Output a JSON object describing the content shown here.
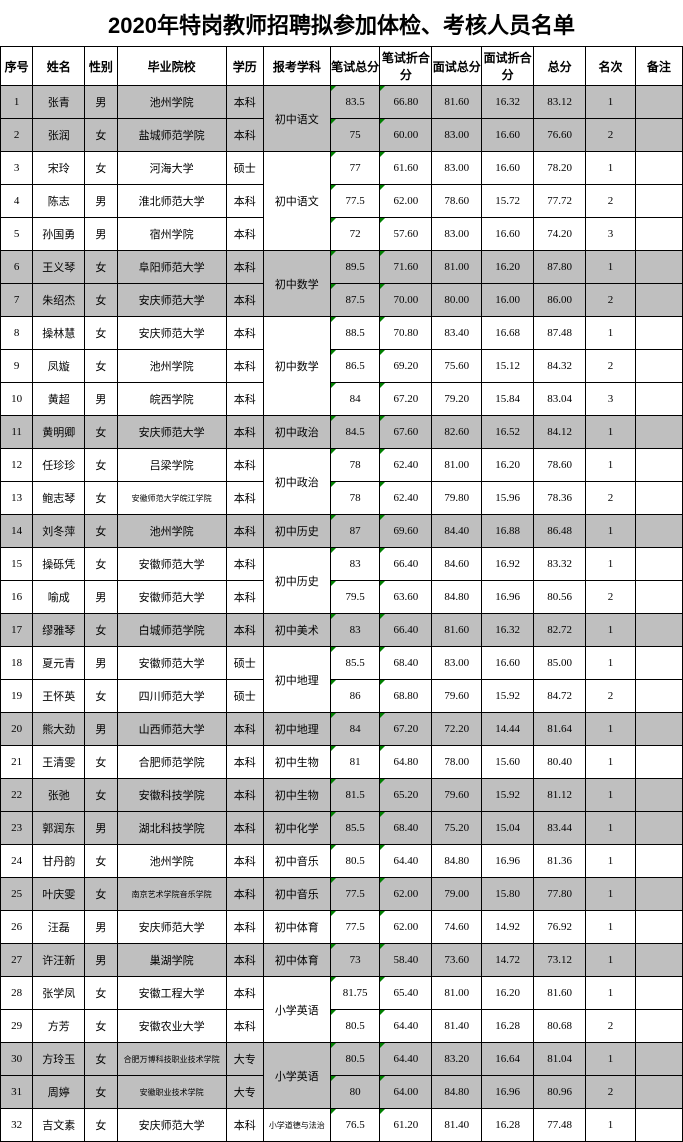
{
  "title": "2020年特岗教师招聘拟参加体检、考核人员名单",
  "headers": {
    "seq": "序号",
    "name": "姓名",
    "sex": "性别",
    "school": "毕业院校",
    "edu": "学历",
    "subject": "报考学科",
    "s1": "笔试总分",
    "s2": "笔试折合分",
    "s3": "面试总分",
    "s4": "面试折合分",
    "total": "总分",
    "rank": "名次",
    "note": "备注"
  },
  "groups": [
    {
      "subject": "初中语文",
      "shaded": true,
      "rows": [
        {
          "seq": 1,
          "name": "张青",
          "sex": "男",
          "school": "池州学院",
          "edu": "本科",
          "s1": "83.5",
          "s2": "66.80",
          "s3": "81.60",
          "s4": "16.32",
          "total": "83.12",
          "rank": 1
        },
        {
          "seq": 2,
          "name": "张润",
          "sex": "女",
          "school": "盐城师范学院",
          "edu": "本科",
          "s1": "75",
          "s2": "60.00",
          "s3": "83.00",
          "s4": "16.60",
          "total": "76.60",
          "rank": 2
        }
      ]
    },
    {
      "subject": "初中语文",
      "shaded": false,
      "rows": [
        {
          "seq": 3,
          "name": "宋玲",
          "sex": "女",
          "school": "河海大学",
          "edu": "硕士",
          "s1": "77",
          "s2": "61.60",
          "s3": "83.00",
          "s4": "16.60",
          "total": "78.20",
          "rank": 1
        },
        {
          "seq": 4,
          "name": "陈志",
          "sex": "男",
          "school": "淮北师范大学",
          "edu": "本科",
          "s1": "77.5",
          "s2": "62.00",
          "s3": "78.60",
          "s4": "15.72",
          "total": "77.72",
          "rank": 2
        },
        {
          "seq": 5,
          "name": "孙国勇",
          "sex": "男",
          "school": "宿州学院",
          "edu": "本科",
          "s1": "72",
          "s2": "57.60",
          "s3": "83.00",
          "s4": "16.60",
          "total": "74.20",
          "rank": 3
        }
      ]
    },
    {
      "subject": "初中数学",
      "shaded": true,
      "rows": [
        {
          "seq": 6,
          "name": "王义琴",
          "sex": "女",
          "school": "阜阳师范大学",
          "edu": "本科",
          "s1": "89.5",
          "s2": "71.60",
          "s3": "81.00",
          "s4": "16.20",
          "total": "87.80",
          "rank": 1
        },
        {
          "seq": 7,
          "name": "朱绍杰",
          "sex": "女",
          "school": "安庆师范大学",
          "edu": "本科",
          "s1": "87.5",
          "s2": "70.00",
          "s3": "80.00",
          "s4": "16.00",
          "total": "86.00",
          "rank": 2
        }
      ]
    },
    {
      "subject": "初中数学",
      "shaded": false,
      "rows": [
        {
          "seq": 8,
          "name": "操林慧",
          "sex": "女",
          "school": "安庆师范大学",
          "edu": "本科",
          "s1": "88.5",
          "s2": "70.80",
          "s3": "83.40",
          "s4": "16.68",
          "total": "87.48",
          "rank": 1
        },
        {
          "seq": 9,
          "name": "凤嫙",
          "sex": "女",
          "school": "池州学院",
          "edu": "本科",
          "s1": "86.5",
          "s2": "69.20",
          "s3": "75.60",
          "s4": "15.12",
          "total": "84.32",
          "rank": 2
        },
        {
          "seq": 10,
          "name": "黄超",
          "sex": "男",
          "school": "皖西学院",
          "edu": "本科",
          "s1": "84",
          "s2": "67.20",
          "s3": "79.20",
          "s4": "15.84",
          "total": "83.04",
          "rank": 3
        }
      ]
    },
    {
      "subject": "初中政治",
      "shaded": true,
      "rows": [
        {
          "seq": 11,
          "name": "黄明卿",
          "sex": "女",
          "school": "安庆师范大学",
          "edu": "本科",
          "s1": "84.5",
          "s2": "67.60",
          "s3": "82.60",
          "s4": "16.52",
          "total": "84.12",
          "rank": 1
        }
      ]
    },
    {
      "subject": "初中政治",
      "shaded": false,
      "rows": [
        {
          "seq": 12,
          "name": "任珍珍",
          "sex": "女",
          "school": "吕梁学院",
          "edu": "本科",
          "s1": "78",
          "s2": "62.40",
          "s3": "81.00",
          "s4": "16.20",
          "total": "78.60",
          "rank": 1
        },
        {
          "seq": 13,
          "name": "鲍志琴",
          "sex": "女",
          "school": "安徽师范大学皖江学院",
          "schoolSmall": true,
          "edu": "本科",
          "s1": "78",
          "s2": "62.40",
          "s3": "79.80",
          "s4": "15.96",
          "total": "78.36",
          "rank": 2
        }
      ]
    },
    {
      "subject": "初中历史",
      "shaded": true,
      "rows": [
        {
          "seq": 14,
          "name": "刘冬萍",
          "sex": "女",
          "school": "池州学院",
          "edu": "本科",
          "s1": "87",
          "s2": "69.60",
          "s3": "84.40",
          "s4": "16.88",
          "total": "86.48",
          "rank": 1
        }
      ]
    },
    {
      "subject": "初中历史",
      "shaded": false,
      "rows": [
        {
          "seq": 15,
          "name": "操砾凭",
          "sex": "女",
          "school": "安徽师范大学",
          "edu": "本科",
          "s1": "83",
          "s2": "66.40",
          "s3": "84.60",
          "s4": "16.92",
          "total": "83.32",
          "rank": 1
        },
        {
          "seq": 16,
          "name": "喻成",
          "sex": "男",
          "school": "安徽师范大学",
          "edu": "本科",
          "s1": "79.5",
          "s2": "63.60",
          "s3": "84.80",
          "s4": "16.96",
          "total": "80.56",
          "rank": 2
        }
      ]
    },
    {
      "subject": "初中美术",
      "shaded": true,
      "rows": [
        {
          "seq": 17,
          "name": "缪雅琴",
          "sex": "女",
          "school": "白城师范学院",
          "edu": "本科",
          "s1": "83",
          "s2": "66.40",
          "s3": "81.60",
          "s4": "16.32",
          "total": "82.72",
          "rank": 1
        }
      ]
    },
    {
      "subject": "初中地理",
      "shaded": false,
      "rows": [
        {
          "seq": 18,
          "name": "夏元青",
          "sex": "男",
          "school": "安徽师范大学",
          "edu": "硕士",
          "s1": "85.5",
          "s2": "68.40",
          "s3": "83.00",
          "s4": "16.60",
          "total": "85.00",
          "rank": 1
        },
        {
          "seq": 19,
          "name": "王怀英",
          "sex": "女",
          "school": "四川师范大学",
          "edu": "硕士",
          "s1": "86",
          "s2": "68.80",
          "s3": "79.60",
          "s4": "15.92",
          "total": "84.72",
          "rank": 2
        }
      ]
    },
    {
      "subject": "初中地理",
      "shaded": true,
      "rows": [
        {
          "seq": 20,
          "name": "熊大劲",
          "sex": "男",
          "school": "山西师范大学",
          "edu": "本科",
          "s1": "84",
          "s2": "67.20",
          "s3": "72.20",
          "s4": "14.44",
          "total": "81.64",
          "rank": 1
        }
      ]
    },
    {
      "subject": "初中生物",
      "shaded": false,
      "rows": [
        {
          "seq": 21,
          "name": "王清雯",
          "sex": "女",
          "school": "合肥师范学院",
          "edu": "本科",
          "s1": "81",
          "s2": "64.80",
          "s3": "78.00",
          "s4": "15.60",
          "total": "80.40",
          "rank": 1
        }
      ]
    },
    {
      "subject": "初中生物",
      "shaded": true,
      "rows": [
        {
          "seq": 22,
          "name": "张弛",
          "sex": "女",
          "school": "安徽科技学院",
          "edu": "本科",
          "s1": "81.5",
          "s2": "65.20",
          "s3": "79.60",
          "s4": "15.92",
          "total": "81.12",
          "rank": 1
        }
      ]
    },
    {
      "subject": "初中化学",
      "shaded": true,
      "rows": [
        {
          "seq": 23,
          "name": "郭润东",
          "sex": "男",
          "school": "湖北科技学院",
          "edu": "本科",
          "s1": "85.5",
          "s2": "68.40",
          "s3": "75.20",
          "s4": "15.04",
          "total": "83.44",
          "rank": 1
        }
      ]
    },
    {
      "subject": "初中音乐",
      "shaded": false,
      "rows": [
        {
          "seq": 24,
          "name": "甘丹韵",
          "sex": "女",
          "school": "池州学院",
          "edu": "本科",
          "s1": "80.5",
          "s2": "64.40",
          "s3": "84.80",
          "s4": "16.96",
          "total": "81.36",
          "rank": 1
        }
      ]
    },
    {
      "subject": "初中音乐",
      "shaded": true,
      "rows": [
        {
          "seq": 25,
          "name": "叶庆雯",
          "sex": "女",
          "school": "南京艺术学院音乐学院",
          "schoolSmall": true,
          "edu": "本科",
          "s1": "77.5",
          "s2": "62.00",
          "s3": "79.00",
          "s4": "15.80",
          "total": "77.80",
          "rank": 1
        }
      ]
    },
    {
      "subject": "初中体育",
      "shaded": false,
      "rows": [
        {
          "seq": 26,
          "name": "汪磊",
          "sex": "男",
          "school": "安庆师范大学",
          "edu": "本科",
          "s1": "77.5",
          "s2": "62.00",
          "s3": "74.60",
          "s4": "14.92",
          "total": "76.92",
          "rank": 1
        }
      ]
    },
    {
      "subject": "初中体育",
      "shaded": true,
      "rows": [
        {
          "seq": 27,
          "name": "许汪新",
          "sex": "男",
          "school": "巢湖学院",
          "edu": "本科",
          "s1": "73",
          "s2": "58.40",
          "s3": "73.60",
          "s4": "14.72",
          "total": "73.12",
          "rank": 1
        }
      ]
    },
    {
      "subject": "小学英语",
      "shaded": false,
      "rows": [
        {
          "seq": 28,
          "name": "张学凤",
          "sex": "女",
          "school": "安徽工程大学",
          "edu": "本科",
          "s1": "81.75",
          "s2": "65.40",
          "s3": "81.00",
          "s4": "16.20",
          "total": "81.60",
          "rank": 1
        },
        {
          "seq": 29,
          "name": "方芳",
          "sex": "女",
          "school": "安徽农业大学",
          "edu": "本科",
          "s1": "80.5",
          "s2": "64.40",
          "s3": "81.40",
          "s4": "16.28",
          "total": "80.68",
          "rank": 2
        }
      ]
    },
    {
      "subject": "小学英语",
      "shaded": true,
      "rows": [
        {
          "seq": 30,
          "name": "方玲玉",
          "sex": "女",
          "school": "合肥万博科技职业技术学院",
          "schoolSmall": true,
          "edu": "大专",
          "s1": "80.5",
          "s2": "64.40",
          "s3": "83.20",
          "s4": "16.64",
          "total": "81.04",
          "rank": 1
        },
        {
          "seq": 31,
          "name": "周婷",
          "sex": "女",
          "school": "安徽职业技术学院",
          "schoolSmall": true,
          "edu": "大专",
          "s1": "80",
          "s2": "64.00",
          "s3": "84.80",
          "s4": "16.96",
          "total": "80.96",
          "rank": 2
        }
      ]
    },
    {
      "subject": "小学道德与法治",
      "subjectSmall": true,
      "shaded": false,
      "rows": [
        {
          "seq": 32,
          "name": "吉文素",
          "sex": "女",
          "school": "安庆师范大学",
          "edu": "本科",
          "s1": "76.5",
          "s2": "61.20",
          "s3": "81.40",
          "s4": "16.28",
          "total": "77.48",
          "rank": 1
        }
      ]
    }
  ]
}
